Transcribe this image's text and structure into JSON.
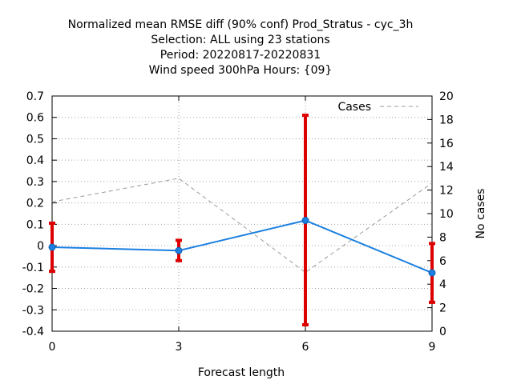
{
  "chart_data": {
    "type": "line",
    "title": [
      "Normalized mean RMSE diff (90% conf) Prod_Stratus - cyc_3h",
      "Selection: ALL using    23 stations",
      "Period: 20220817-20220831",
      "Wind speed 300hPa   Hours: {09}"
    ],
    "xlabel": "Forecast length",
    "ylabel": "",
    "y2label": "No cases",
    "x": [
      0,
      3,
      6,
      9
    ],
    "xlim": [
      0,
      9
    ],
    "xticks": [
      "0",
      "3",
      "6",
      "9"
    ],
    "ylim": [
      -0.4,
      0.7
    ],
    "yticks": [
      "-0.4",
      "-0.3",
      "-0.2",
      "-0.1",
      "0",
      "0.1",
      "0.2",
      "0.3",
      "0.4",
      "0.5",
      "0.6",
      "0.7"
    ],
    "y2lim": [
      0,
      20
    ],
    "y2ticks": [
      "0",
      "2",
      "4",
      "6",
      "8",
      "10",
      "12",
      "14",
      "16",
      "18",
      "20"
    ],
    "grid": true,
    "legend_position": "top-right",
    "series": [
      {
        "kind": "line_with_errorbars",
        "color": "#1a7fe0",
        "values": [
          -0.007,
          -0.023,
          0.118,
          -0.127
        ],
        "err_low": [
          -0.12,
          -0.07,
          -0.37,
          -0.265
        ],
        "err_high": [
          0.105,
          0.025,
          0.61,
          0.01
        ],
        "errorbar_color": "#dd0000"
      },
      {
        "name": "Cases",
        "axis": "y2",
        "kind": "dashed_line",
        "color": "#999999",
        "values": [
          11,
          13,
          5,
          12.6
        ]
      }
    ]
  }
}
